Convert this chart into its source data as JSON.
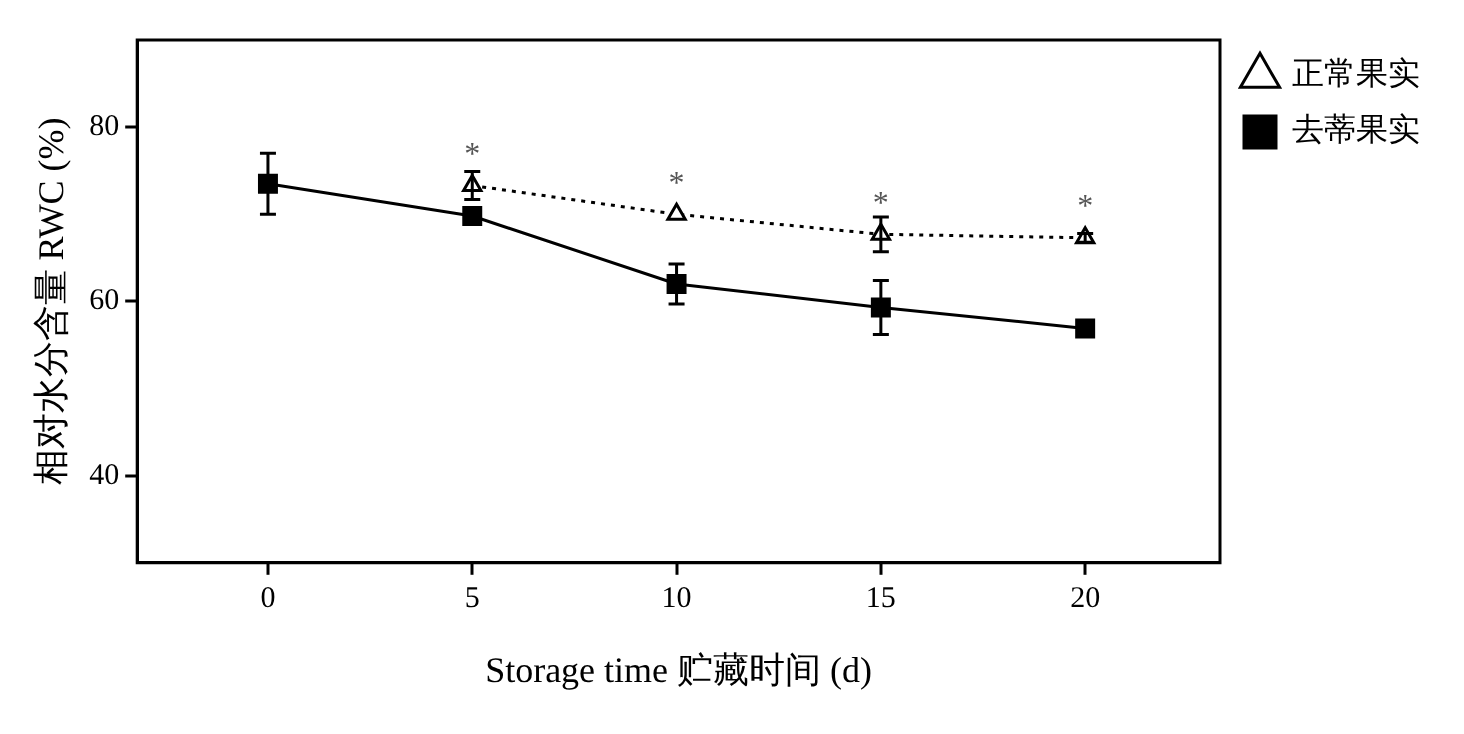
{
  "chart_data": {
    "type": "line",
    "xlabel": "Storage time 贮藏时间 (d)",
    "ylabel": "相对水分含量 RWC (%)",
    "x": [
      0,
      5,
      10,
      15,
      20
    ],
    "series": [
      {
        "name": "正常果实",
        "color": "#000000",
        "values": [
          null,
          73.3,
          70.0,
          67.7,
          67.3
        ],
        "errors": [
          null,
          1.6,
          null,
          2,
          0.5
        ],
        "marker": "triangle",
        "line_style": "dotted"
      },
      {
        "name": "去蒂果实",
        "color": "#000000",
        "values": [
          73.5,
          69.8,
          62.0,
          59.3,
          56.9
        ],
        "errors": [
          3.5,
          null,
          2.3,
          3.1,
          null
        ],
        "marker": "square",
        "line_style": "solid"
      }
    ],
    "xlim": [
      -3.2,
      23.3
    ],
    "xticks": [
      0,
      5,
      10,
      15,
      20
    ],
    "ylim": [
      30,
      90
    ],
    "yticks": [
      40,
      60,
      80
    ],
    "grid": false,
    "legend": "top right",
    "annotations": [
      {
        "text": "*",
        "x": 5,
        "y": 73.3
      },
      {
        "text": "*",
        "x": 10,
        "y": 70.0
      },
      {
        "text": "*",
        "x": 15,
        "y": 67.7
      },
      {
        "text": "*",
        "x": 20,
        "y": 67.3
      }
    ]
  }
}
